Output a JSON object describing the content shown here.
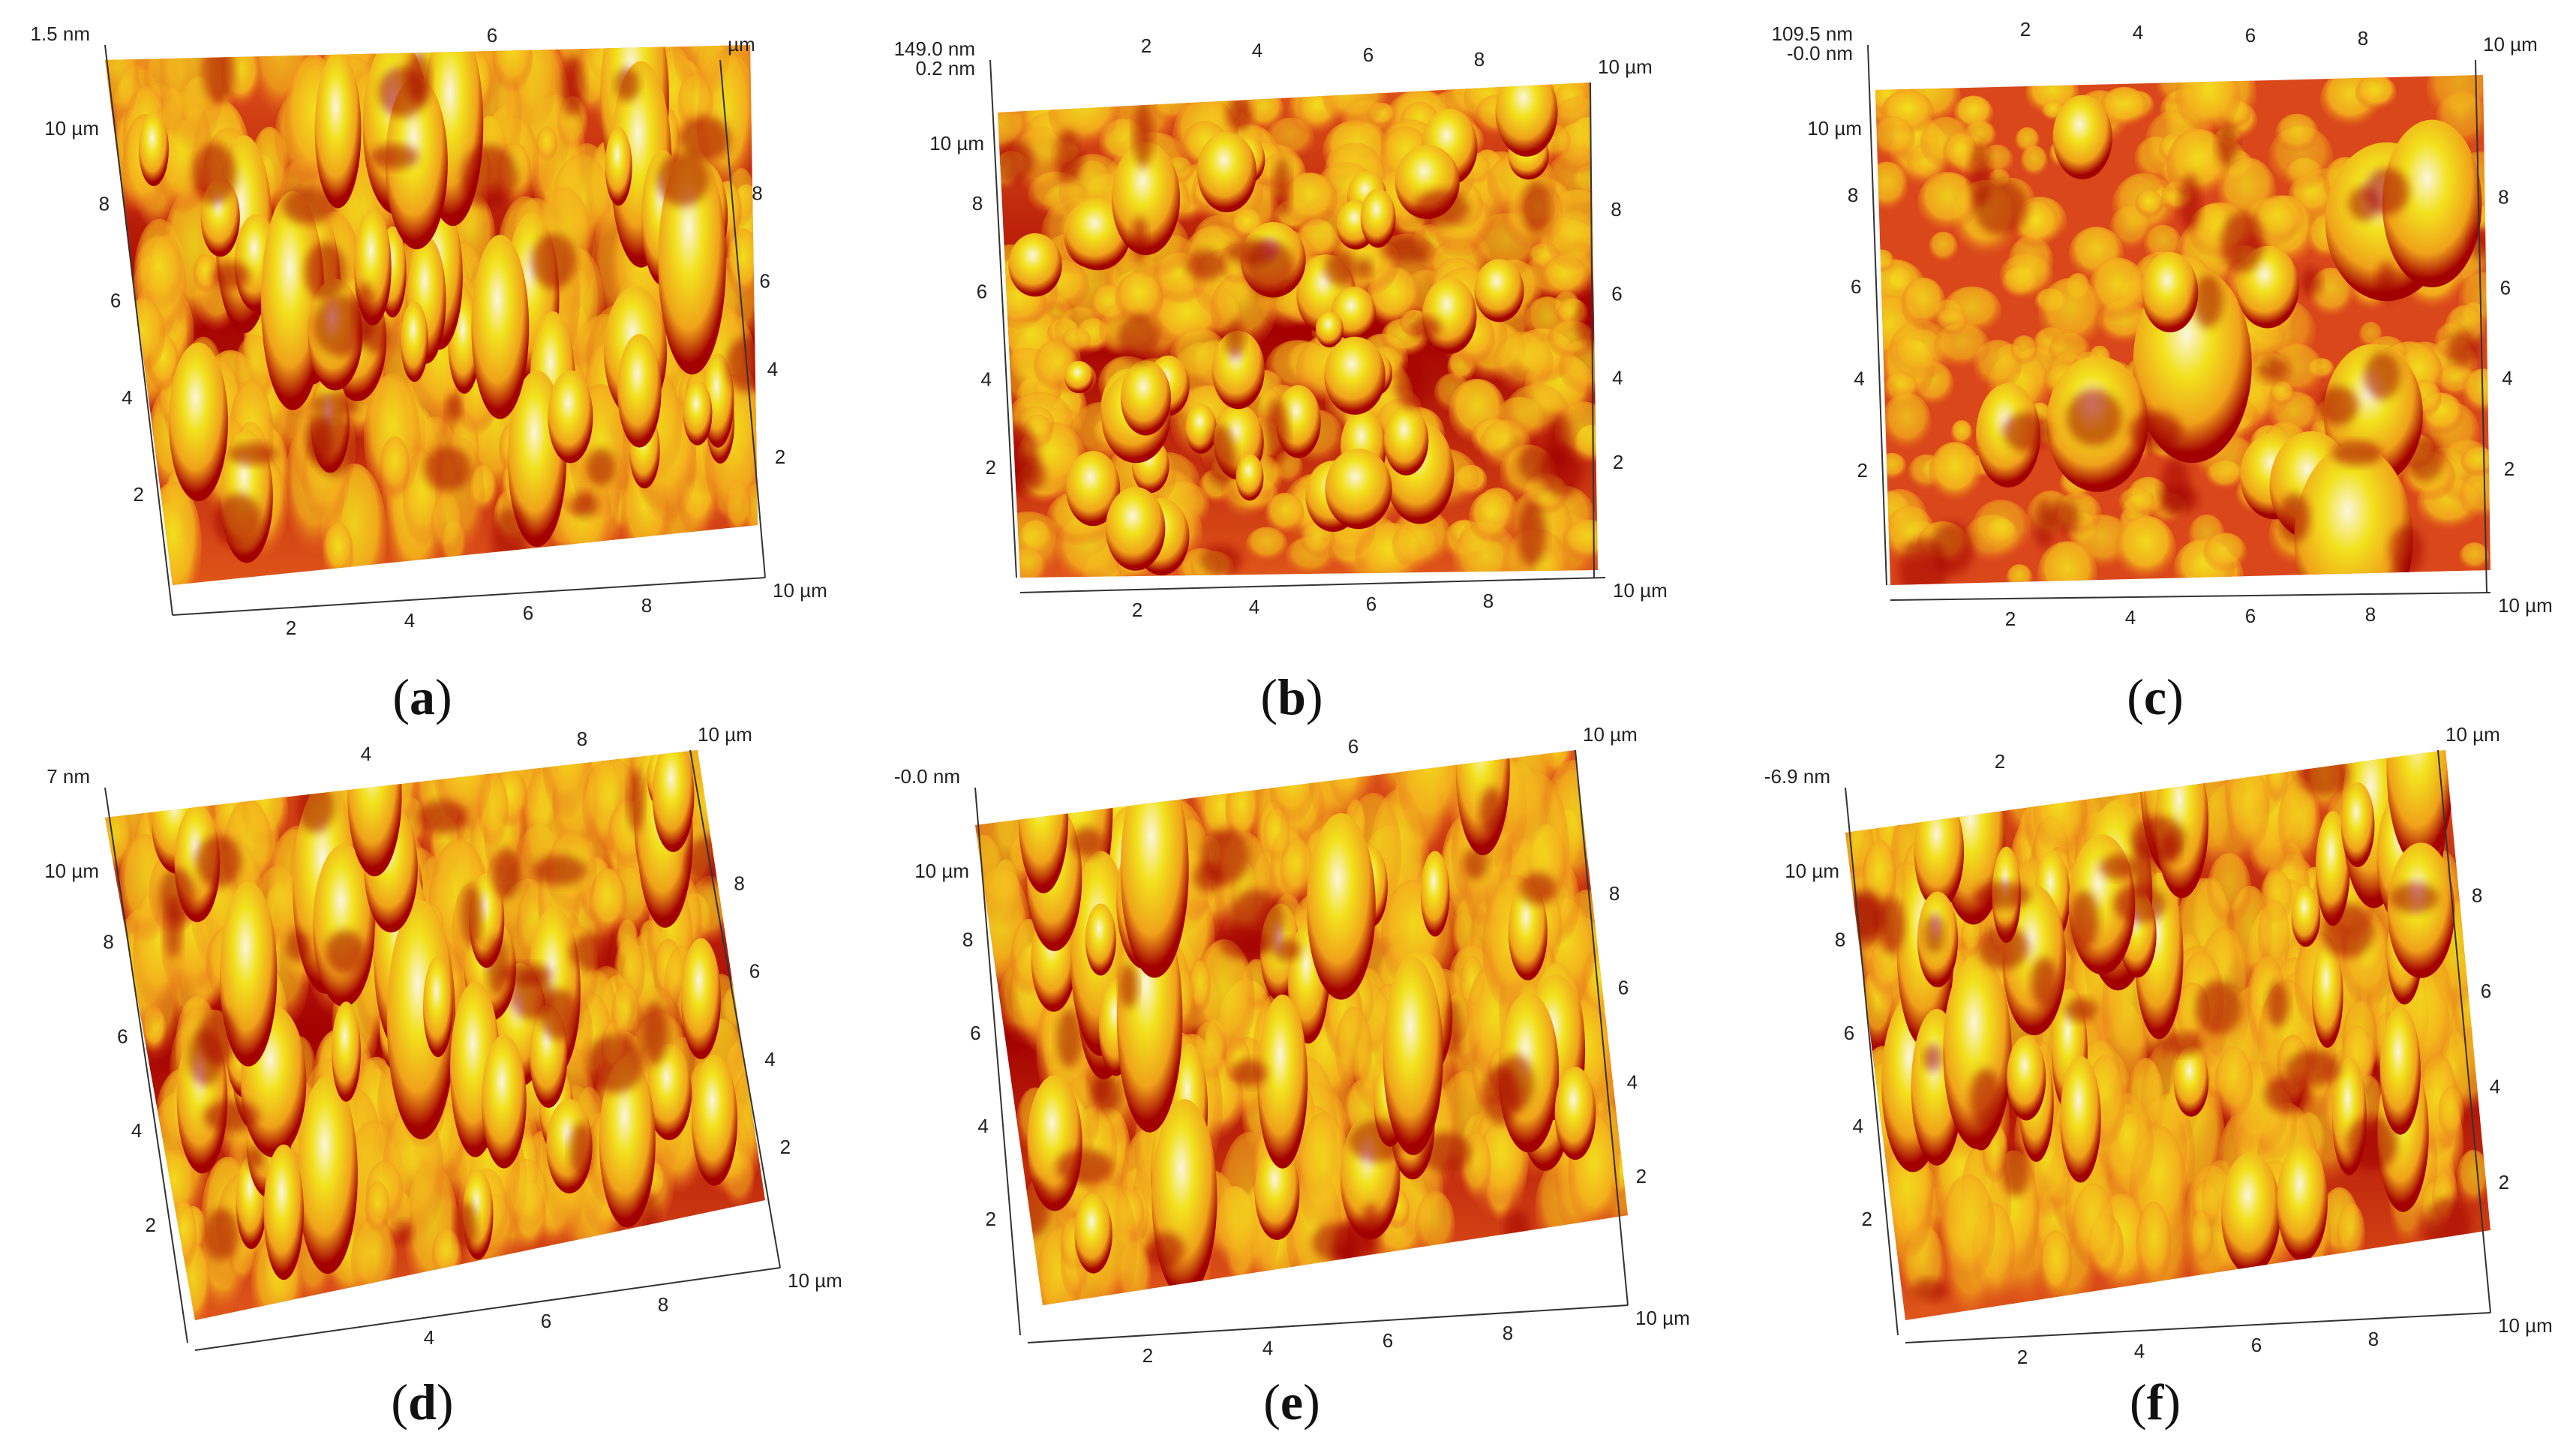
{
  "colors": {
    "low": "#a30000",
    "mid": "#e0561a",
    "high": "#f2e21d",
    "peak": "#fbf6df"
  },
  "panels": [
    {
      "id": "a",
      "label": "a",
      "z_top": "1.5 nm",
      "z_top2": "",
      "x_end": "10 µm",
      "y_end": "10 µm",
      "top_end": "µm",
      "x_ticks": [
        "2",
        "4",
        "6",
        "8"
      ],
      "y_ticks": [
        "2",
        "4",
        "6",
        "8"
      ],
      "right_ticks": [
        "2",
        "4",
        "6",
        "8"
      ],
      "top_ticks": [
        "6"
      ],
      "style": "3d"
    },
    {
      "id": "b",
      "label": "b",
      "z_top": "149.0 nm",
      "z_top2": "0.2 nm",
      "x_end": "10 µm",
      "y_end": "10 µm",
      "top_end": "10 µm",
      "x_ticks": [
        "2",
        "4",
        "6",
        "8"
      ],
      "y_ticks": [
        "2",
        "4",
        "6",
        "8"
      ],
      "right_ticks": [
        "2",
        "4",
        "6",
        "8"
      ],
      "top_ticks": [
        "2",
        "4",
        "6",
        "8"
      ],
      "style": "flat"
    },
    {
      "id": "c",
      "label": "c",
      "z_top": "109.5 nm",
      "z_top2": "-0.0 nm",
      "x_end": "10 µm",
      "y_end": "10 µm",
      "top_end": "10 µm",
      "x_ticks": [
        "2",
        "4",
        "6",
        "8"
      ],
      "y_ticks": [
        "2",
        "4",
        "6",
        "8"
      ],
      "right_ticks": [
        "2",
        "4",
        "6",
        "8"
      ],
      "top_ticks": [
        "2",
        "4",
        "6",
        "8"
      ],
      "style": "blob"
    },
    {
      "id": "d",
      "label": "d",
      "z_top": "7 nm",
      "z_top2": "",
      "x_end": "10 µm",
      "y_end": "10 µm",
      "top_end": "10 µm",
      "x_ticks": [
        "4",
        "6",
        "8"
      ],
      "y_ticks": [
        "2",
        "4",
        "6",
        "8"
      ],
      "right_ticks": [
        "2",
        "4",
        "6",
        "8"
      ],
      "top_ticks": [
        "4",
        "8"
      ],
      "style": "3d"
    },
    {
      "id": "e",
      "label": "e",
      "z_top": "-0.0 nm",
      "z_top2": "",
      "x_end": "10 µm",
      "y_end": "10 µm",
      "top_end": "10 µm",
      "x_ticks": [
        "2",
        "4",
        "6",
        "8"
      ],
      "y_ticks": [
        "2",
        "4",
        "6",
        "8"
      ],
      "right_ticks": [
        "2",
        "4",
        "6",
        "8"
      ],
      "top_ticks": [
        "6"
      ],
      "style": "3d"
    },
    {
      "id": "f",
      "label": "f",
      "z_top": "-6.9 nm",
      "z_top2": "",
      "x_end": "10 µm",
      "y_end": "10 µm",
      "top_end": "10 µm",
      "x_ticks": [
        "2",
        "4",
        "6",
        "8"
      ],
      "y_ticks": [
        "2",
        "4",
        "6",
        "8"
      ],
      "right_ticks": [
        "2",
        "4",
        "6",
        "8"
      ],
      "top_ticks": [
        "2"
      ],
      "style": "3d"
    }
  ]
}
